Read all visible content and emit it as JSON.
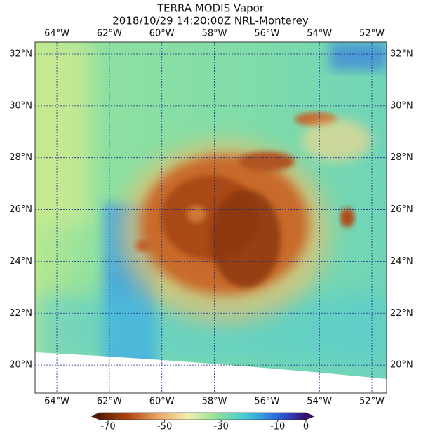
{
  "title": "TERRA MODIS Vapor",
  "subtitle": "2018/10/29 14:20:00Z NRL-Monterey",
  "map": {
    "lonlim": [
      -64.83,
      -51.44
    ],
    "latlim": [
      18.92,
      32.46
    ],
    "grid": true,
    "lonticks": [
      {
        "value": -64,
        "label": "64°W"
      },
      {
        "value": -62,
        "label": "62°W"
      },
      {
        "value": -60,
        "label": "60°W"
      },
      {
        "value": -58,
        "label": "58°W"
      },
      {
        "value": -56,
        "label": "56°W"
      },
      {
        "value": -54,
        "label": "54°W"
      },
      {
        "value": -52,
        "label": "52°W"
      }
    ],
    "latticks": [
      {
        "value": 20,
        "label": "20°N"
      },
      {
        "value": 22,
        "label": "22°N"
      },
      {
        "value": 24,
        "label": "24°N"
      },
      {
        "value": 26,
        "label": "26°N"
      },
      {
        "value": 28,
        "label": "28°N"
      },
      {
        "value": 30,
        "label": "30°N"
      },
      {
        "value": 32,
        "label": "32°N"
      }
    ]
  },
  "colorbar": {
    "lim": [
      -73,
      0
    ],
    "ticks": [
      -70,
      -50,
      -30,
      -10,
      0
    ],
    "colors": [
      "#5a1a00",
      "#b04a12",
      "#e8a868",
      "#f4eeb0",
      "#90e098",
      "#40c8d8",
      "#2a6ae0",
      "#3a0a78"
    ]
  }
}
